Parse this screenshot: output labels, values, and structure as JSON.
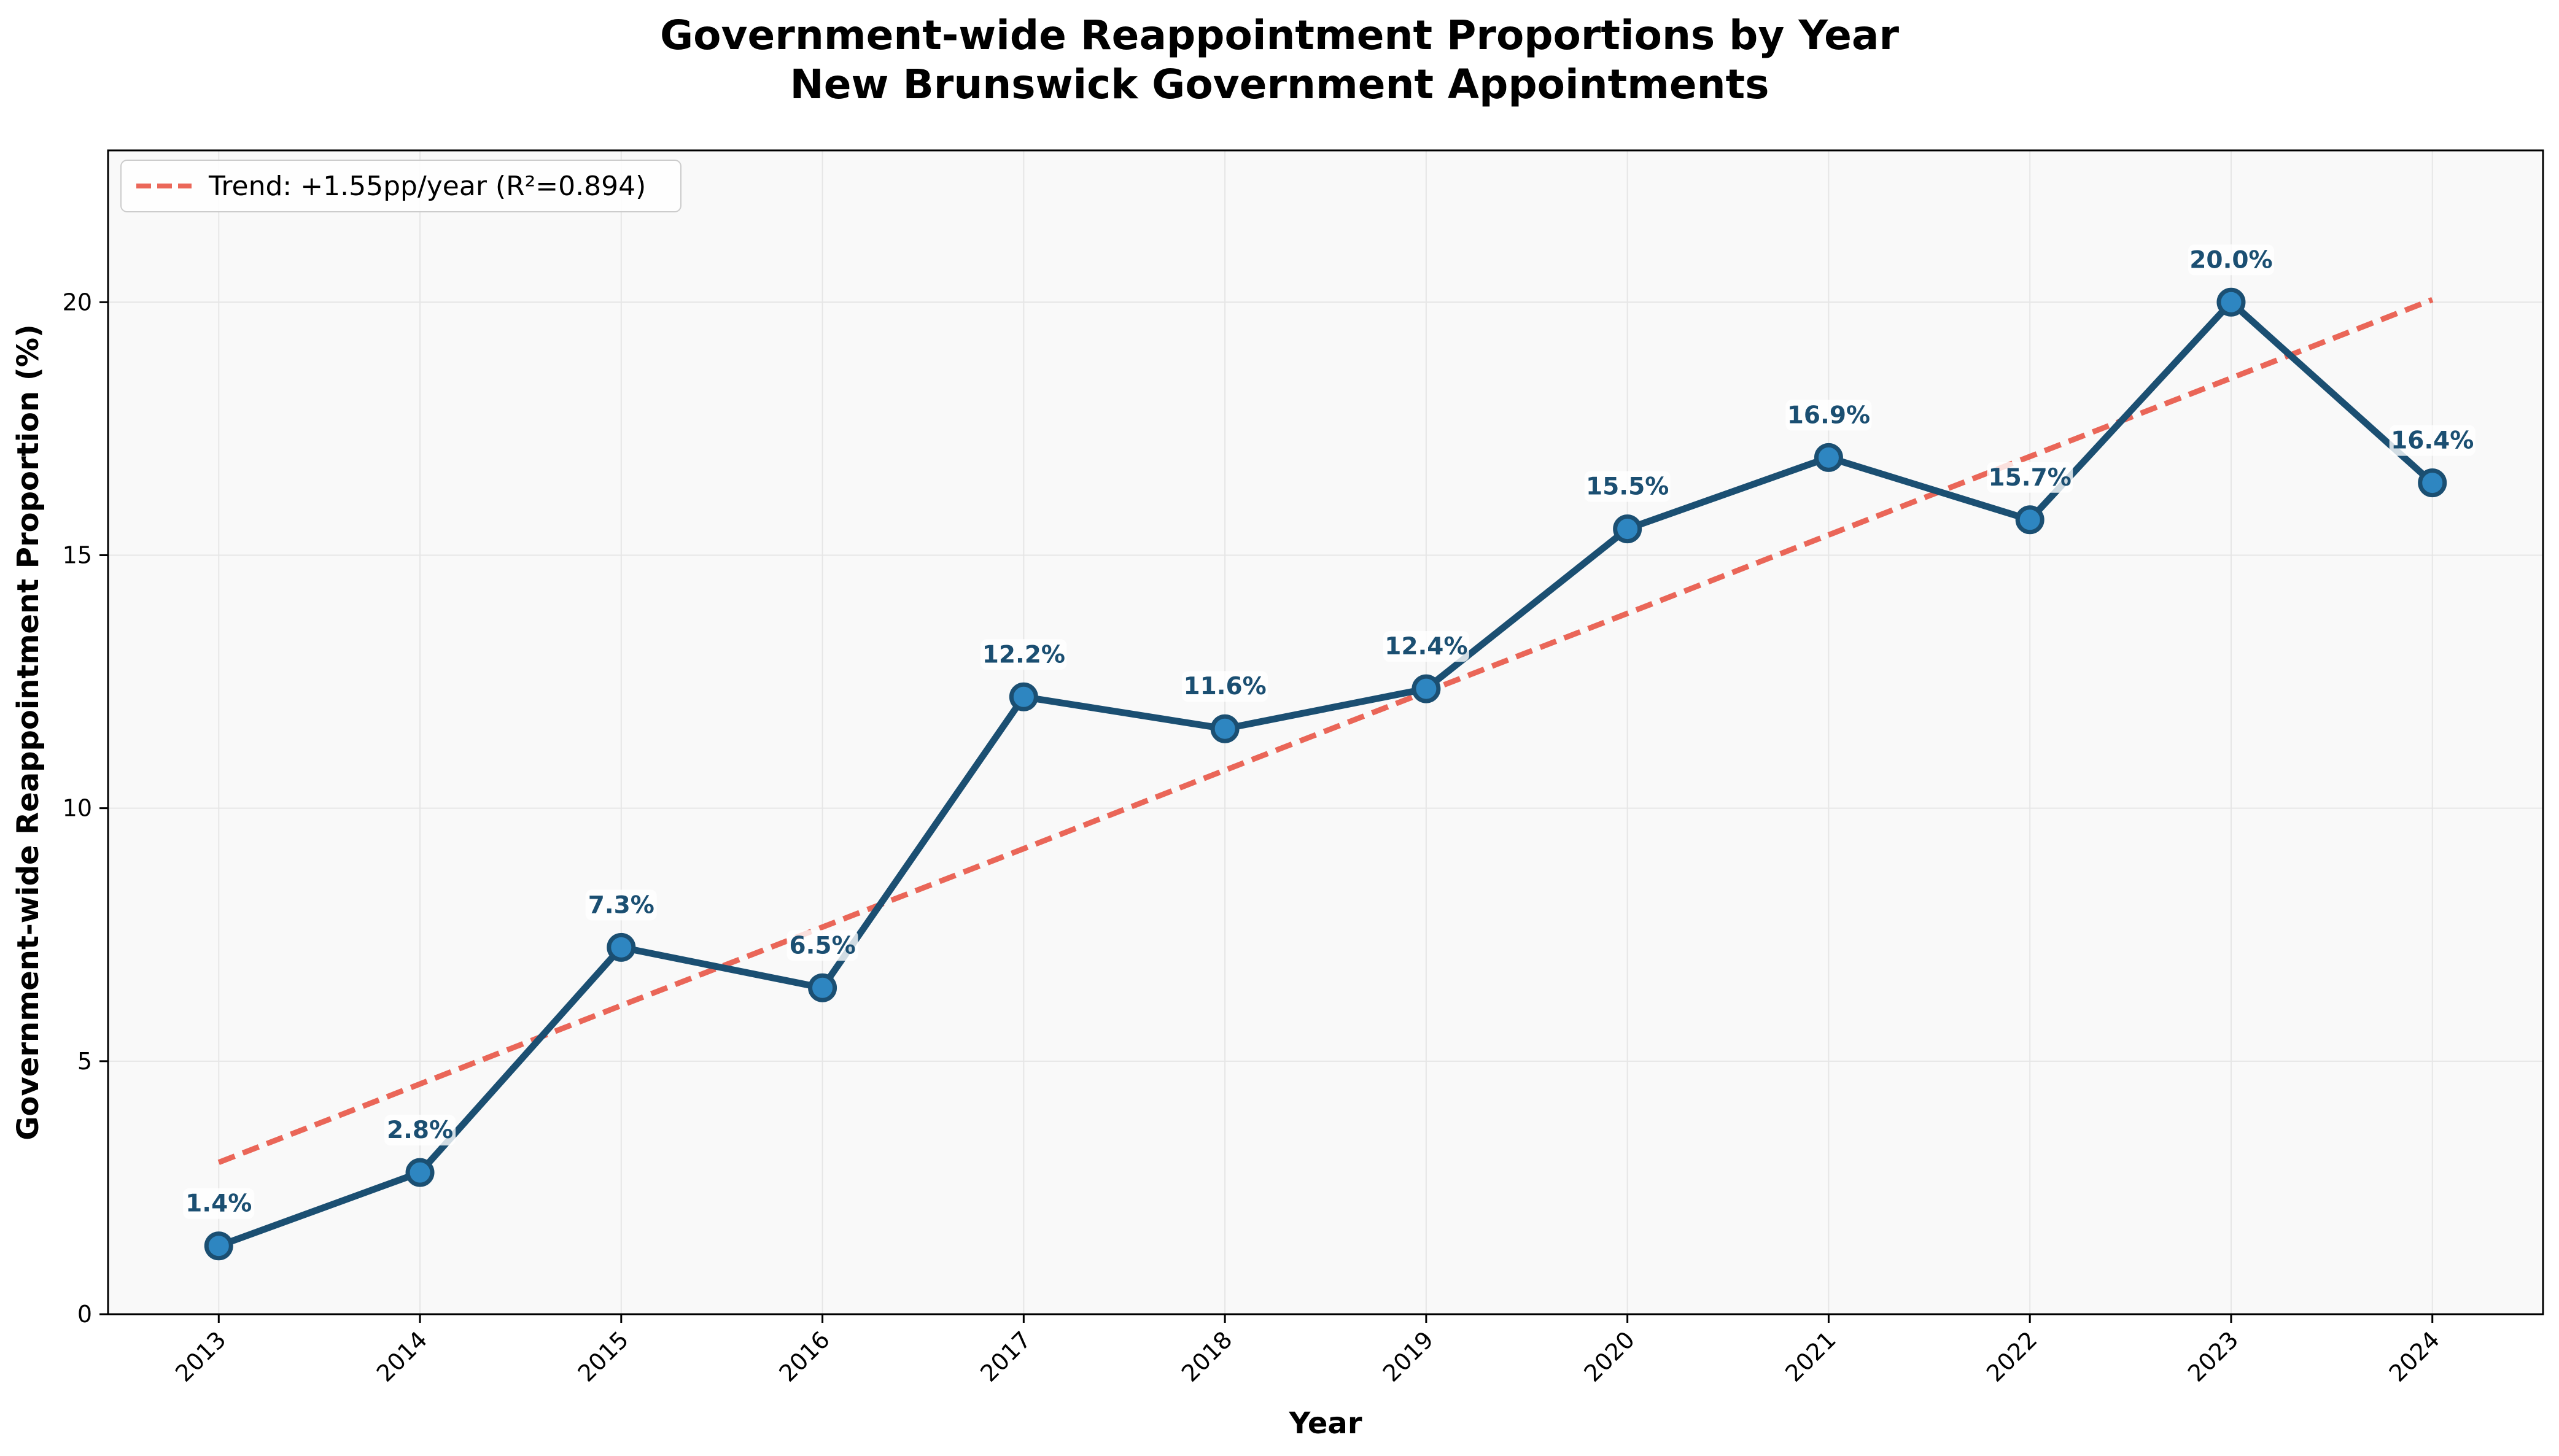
{
  "chart_data": {
    "type": "line",
    "title": "Government-wide Reappointment Proportions by Year",
    "subtitle": "New Brunswick Government Appointments",
    "xlabel": "Year",
    "ylabel": "Government-wide Reappointment Proportion (%)",
    "categories": [
      "2013",
      "2014",
      "2015",
      "2016",
      "2017",
      "2018",
      "2019",
      "2020",
      "2021",
      "2022",
      "2023",
      "2024"
    ],
    "series": [
      {
        "values": [
          1.35,
          2.8,
          7.25,
          6.45,
          12.2,
          11.57,
          12.36,
          15.52,
          16.93,
          15.7,
          20.0,
          16.43
        ],
        "data_labels": [
          "1.4%",
          "2.8%",
          "7.3%",
          "6.5%",
          "12.2%",
          "11.6%",
          "12.4%",
          "15.5%",
          "16.9%",
          "15.7%",
          "20.0%",
          "16.4%"
        ],
        "color": "#1b4f72",
        "marker_color": "#2e86c1"
      },
      {
        "name": "Trend: +1.55pp/year (R²=0.894)",
        "type": "trend",
        "style": "dashed",
        "color": "#e74c3c",
        "start": [
          2013,
          3.0
        ],
        "end": [
          2024,
          20.05
        ]
      }
    ],
    "yticks": [
      0,
      5,
      10,
      15,
      20
    ],
    "ylim": [
      0,
      23
    ],
    "xlim": [
      2012.45,
      2024.55
    ],
    "grid": true,
    "legend_position": "top-left",
    "colors": {
      "background": "#f9f9f9",
      "grid": "#e6e6e6"
    }
  }
}
